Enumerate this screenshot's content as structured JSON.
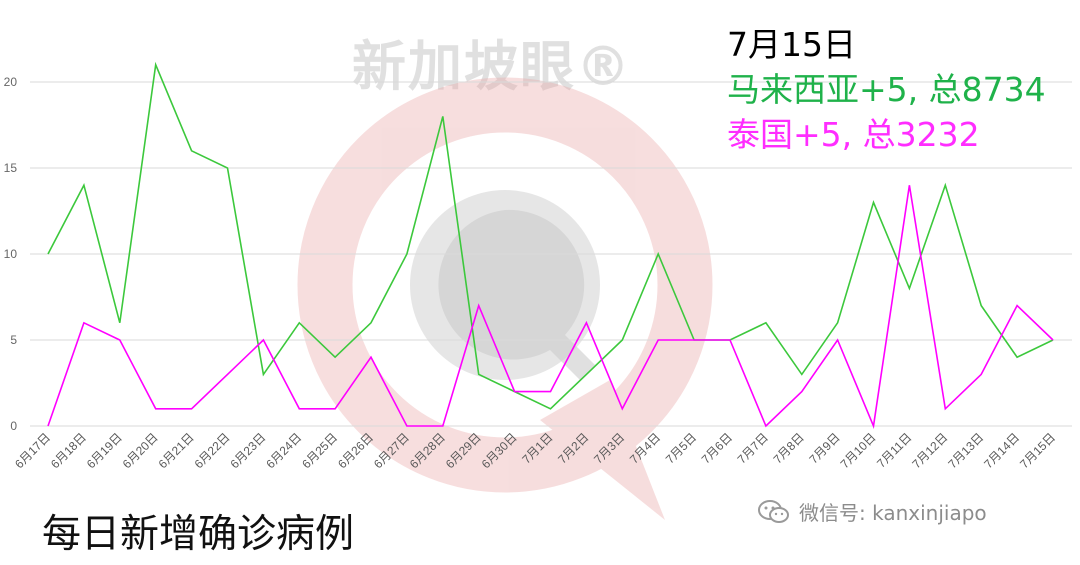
{
  "watermark": "新加坡眼®",
  "legend": {
    "date": "7月15日",
    "malaysia": "马来西亚+5, 总8734",
    "thailand": "泰国+5, 总3232"
  },
  "caption": "每日新增确诊病例",
  "wechat": {
    "label": "微信号: kanxinjiapo",
    "icon": "wechat-icon"
  },
  "colors": {
    "malaysia": "#3cc83c",
    "thailand": "#ff00ff",
    "grid": "#d9d9d9",
    "watermark": "#e8a0a0"
  },
  "chart_data": {
    "type": "line",
    "categories": [
      "6月17日",
      "6月18日",
      "6月19日",
      "6月20日",
      "6月21日",
      "6月22日",
      "6月23日",
      "6月24日",
      "6月25日",
      "6月26日",
      "6月27日",
      "6月28日",
      "6月29日",
      "6月30日",
      "7月1日",
      "7月2日",
      "7月3日",
      "7月4日",
      "7月5日",
      "7月6日",
      "7月7日",
      "7月8日",
      "7月9日",
      "7月10日",
      "7月11日",
      "7月12日",
      "7月13日",
      "7月14日",
      "7月15日"
    ],
    "series": [
      {
        "values": [
          10,
          14,
          6,
          21,
          16,
          15,
          3,
          6,
          4,
          6,
          10,
          18,
          3,
          2,
          1,
          3,
          5,
          10,
          5,
          5,
          6,
          3,
          6,
          13,
          8,
          14,
          7,
          4,
          5
        ],
        "color": "#3cc83c"
      },
      {
        "values": [
          0,
          6,
          5,
          1,
          1,
          3,
          5,
          1,
          1,
          4,
          0,
          0,
          7,
          2,
          2,
          6,
          1,
          5,
          5,
          5,
          0,
          2,
          5,
          0,
          14,
          1,
          3,
          7,
          5
        ],
        "color": "#ff00ff"
      }
    ],
    "yticks": [
      0,
      5,
      10,
      15,
      20
    ],
    "ylim": [
      0,
      22
    ],
    "grid": true
  }
}
